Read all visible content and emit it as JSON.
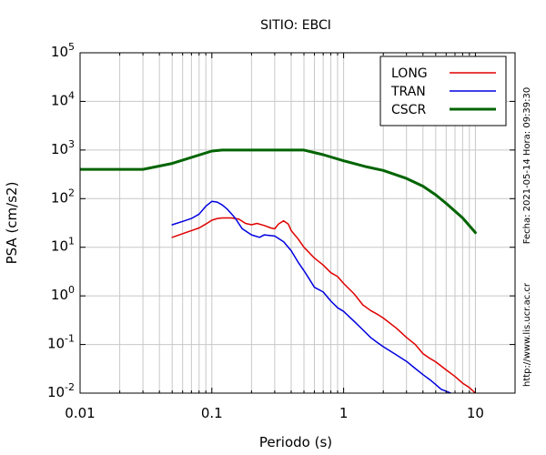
{
  "chart_data": {
    "type": "line",
    "title": "SITIO: EBCI",
    "xlabel": "Periodo (s)",
    "ylabel": "PSA (cm/s2)",
    "x_scale": "log",
    "y_scale": "log",
    "xlim": [
      0.01,
      20
    ],
    "ylim": [
      0.01,
      100000
    ],
    "x_ticks": [
      {
        "value": 0.01,
        "label": "0.01"
      },
      {
        "value": 0.1,
        "label": "0.1"
      },
      {
        "value": 1,
        "label": "1"
      },
      {
        "value": 10,
        "label": "10"
      }
    ],
    "y_ticks": [
      {
        "value": 0.01,
        "base": "10",
        "exp": "-2"
      },
      {
        "value": 0.1,
        "base": "10",
        "exp": "-1"
      },
      {
        "value": 1,
        "base": "10",
        "exp": "0"
      },
      {
        "value": 10,
        "base": "10",
        "exp": "1"
      },
      {
        "value": 100,
        "base": "10",
        "exp": "2"
      },
      {
        "value": 1000,
        "base": "10",
        "exp": "3"
      },
      {
        "value": 10000,
        "base": "10",
        "exp": "4"
      },
      {
        "value": 100000,
        "base": "10",
        "exp": "5"
      }
    ],
    "grid": true,
    "legend_position": "top-right",
    "series": [
      {
        "name": "LONG",
        "color": "#e00000",
        "width": 1.5,
        "points": [
          [
            0.05,
            16
          ],
          [
            0.06,
            19
          ],
          [
            0.07,
            22
          ],
          [
            0.08,
            25
          ],
          [
            0.09,
            30
          ],
          [
            0.1,
            36
          ],
          [
            0.11,
            39
          ],
          [
            0.12,
            40
          ],
          [
            0.14,
            40
          ],
          [
            0.16,
            38
          ],
          [
            0.18,
            31
          ],
          [
            0.2,
            29
          ],
          [
            0.22,
            31
          ],
          [
            0.25,
            28
          ],
          [
            0.28,
            25
          ],
          [
            0.3,
            24
          ],
          [
            0.32,
            30
          ],
          [
            0.35,
            35
          ],
          [
            0.38,
            30
          ],
          [
            0.4,
            22
          ],
          [
            0.45,
            15
          ],
          [
            0.5,
            10
          ],
          [
            0.6,
            6
          ],
          [
            0.7,
            4.3
          ],
          [
            0.8,
            3
          ],
          [
            0.9,
            2.5
          ],
          [
            1,
            1.8
          ],
          [
            1.2,
            1.1
          ],
          [
            1.4,
            0.65
          ],
          [
            1.6,
            0.5
          ],
          [
            1.8,
            0.42
          ],
          [
            2,
            0.35
          ],
          [
            2.5,
            0.22
          ],
          [
            3,
            0.14
          ],
          [
            3.5,
            0.1
          ],
          [
            4,
            0.065
          ],
          [
            4.5,
            0.052
          ],
          [
            5,
            0.044
          ],
          [
            6,
            0.03
          ],
          [
            7,
            0.022
          ],
          [
            8,
            0.016
          ],
          [
            9,
            0.013
          ],
          [
            10,
            0.01
          ]
        ]
      },
      {
        "name": "TRAN",
        "color": "#0000e0",
        "width": 1.5,
        "points": [
          [
            0.05,
            29
          ],
          [
            0.06,
            34
          ],
          [
            0.07,
            39
          ],
          [
            0.08,
            48
          ],
          [
            0.09,
            70
          ],
          [
            0.1,
            88
          ],
          [
            0.11,
            85
          ],
          [
            0.12,
            74
          ],
          [
            0.13,
            62
          ],
          [
            0.15,
            40
          ],
          [
            0.17,
            24
          ],
          [
            0.2,
            18
          ],
          [
            0.23,
            16
          ],
          [
            0.25,
            18
          ],
          [
            0.3,
            17
          ],
          [
            0.35,
            13
          ],
          [
            0.4,
            8.5
          ],
          [
            0.45,
            5
          ],
          [
            0.5,
            3.3
          ],
          [
            0.55,
            2.2
          ],
          [
            0.6,
            1.5
          ],
          [
            0.7,
            1.2
          ],
          [
            0.8,
            0.78
          ],
          [
            0.9,
            0.57
          ],
          [
            1,
            0.48
          ],
          [
            1.2,
            0.3
          ],
          [
            1.4,
            0.2
          ],
          [
            1.6,
            0.14
          ],
          [
            1.8,
            0.11
          ],
          [
            2,
            0.09
          ],
          [
            2.5,
            0.062
          ],
          [
            3,
            0.045
          ],
          [
            3.5,
            0.032
          ],
          [
            4,
            0.024
          ],
          [
            4.5,
            0.019
          ],
          [
            5,
            0.015
          ],
          [
            5.5,
            0.012
          ],
          [
            6.5,
            0.01
          ]
        ]
      },
      {
        "name": "CSCR",
        "color": "#006400",
        "width": 3,
        "points": [
          [
            0.01,
            400
          ],
          [
            0.03,
            400
          ],
          [
            0.05,
            530
          ],
          [
            0.1,
            950
          ],
          [
            0.12,
            1000
          ],
          [
            0.5,
            1000
          ],
          [
            0.7,
            800
          ],
          [
            1,
            600
          ],
          [
            1.5,
            450
          ],
          [
            2,
            380
          ],
          [
            3,
            260
          ],
          [
            4,
            180
          ],
          [
            5,
            120
          ],
          [
            6,
            80
          ],
          [
            8,
            40
          ],
          [
            10,
            20
          ]
        ]
      }
    ]
  },
  "side_texts": {
    "timestamp": "Fecha: 2021-05-14 Hora: 09:39:30",
    "url": "http://www.lis.ucr.ac.cr"
  }
}
